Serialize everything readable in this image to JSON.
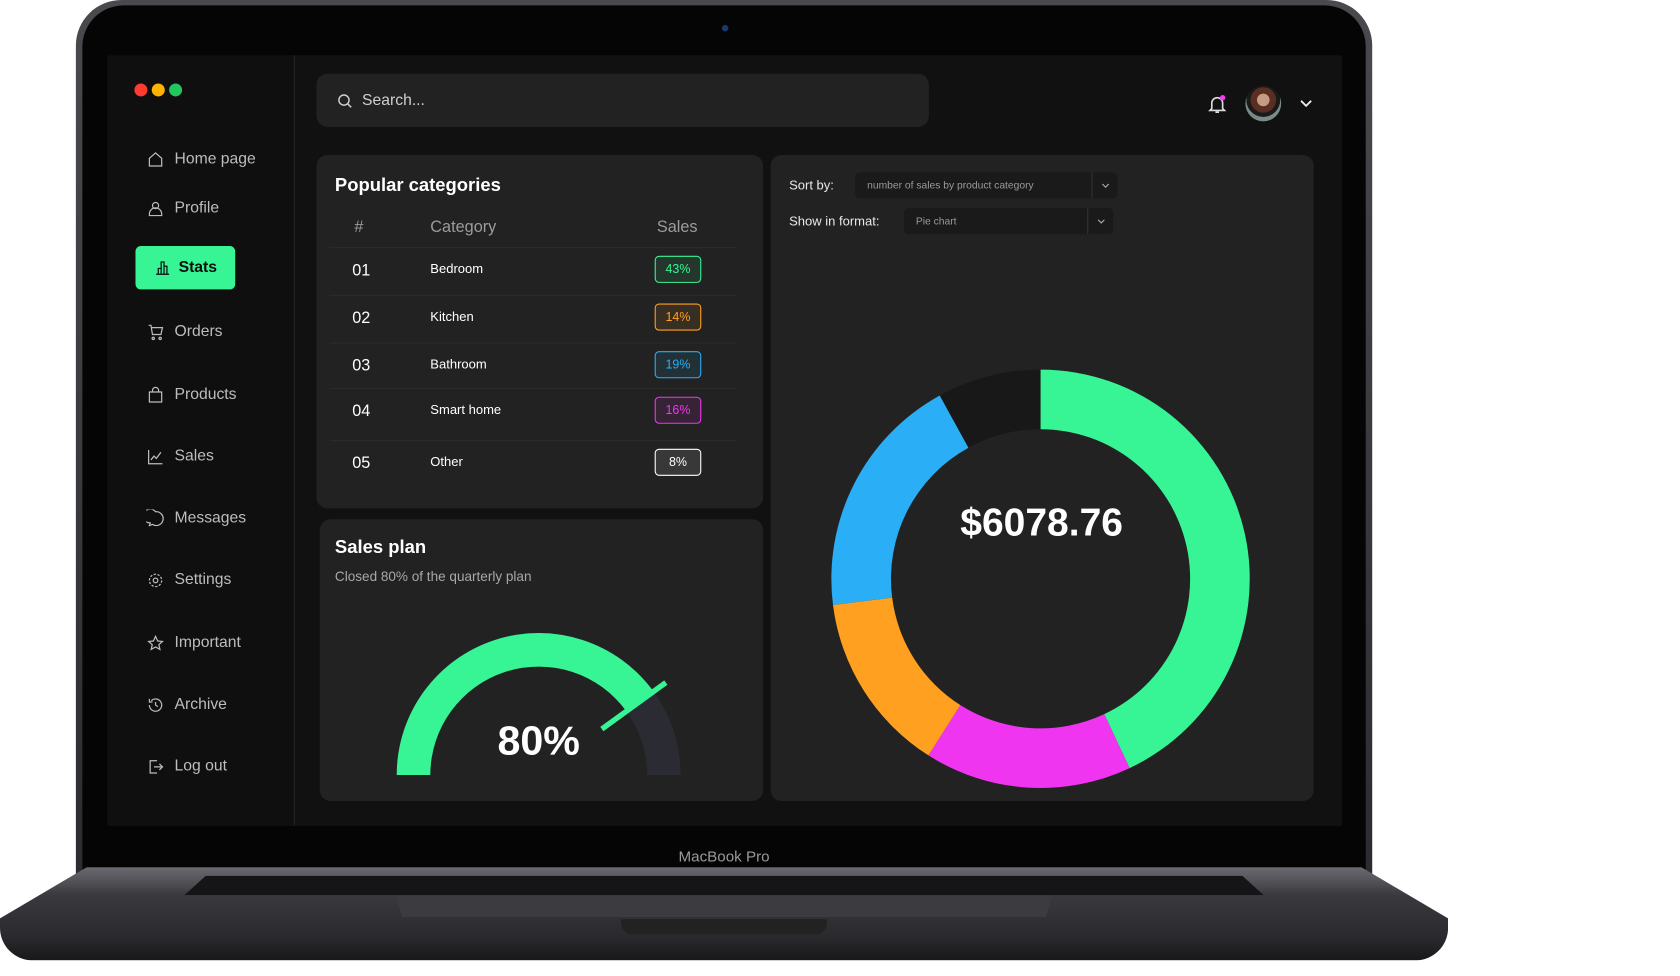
{
  "window_controls": {
    "colors": [
      "#ff3b30",
      "#ffb300",
      "#22c55e"
    ]
  },
  "device_label": "MacBook Pro",
  "sidebar": {
    "items": [
      {
        "label": "Home page",
        "icon": "home-icon"
      },
      {
        "label": "Profile",
        "icon": "user-icon"
      },
      {
        "label": "Stats",
        "icon": "bar-chart-icon",
        "active": true
      },
      {
        "label": "Orders",
        "icon": "cart-icon"
      },
      {
        "label": "Products",
        "icon": "bag-icon"
      },
      {
        "label": "Sales",
        "icon": "line-chart-icon"
      },
      {
        "label": "Messages",
        "icon": "message-icon"
      },
      {
        "label": "Settings",
        "icon": "gear-icon"
      },
      {
        "label": "Important",
        "icon": "star-icon"
      },
      {
        "label": "Archive",
        "icon": "history-icon"
      },
      {
        "label": "Log out",
        "icon": "logout-icon"
      }
    ],
    "accent": "#37f595"
  },
  "header": {
    "search_placeholder": "Search...",
    "notification_dot_color": "#f03df0"
  },
  "popular": {
    "title": "Popular categories",
    "columns": [
      "#",
      "Category",
      "Sales"
    ],
    "rows": [
      {
        "num": "01",
        "category": "Bedroom",
        "sales": "43%",
        "color": "#37f595"
      },
      {
        "num": "02",
        "category": "Kitchen",
        "sales": "14%",
        "color": "#ffa020"
      },
      {
        "num": "03",
        "category": "Bathroom",
        "sales": "19%",
        "color": "#2aaef5"
      },
      {
        "num": "04",
        "category": "Smart home",
        "sales": "16%",
        "color": "#f035f0"
      },
      {
        "num": "05",
        "category": "Other",
        "sales": "8%",
        "color": "#ffffff"
      }
    ]
  },
  "sales_plan": {
    "title": "Sales plan",
    "subtitle": "Closed 80% of the quarterly plan",
    "value_label": "80%",
    "progress": 0.8,
    "fill_color": "#37f595",
    "track_color": "#2b2b33"
  },
  "chart_panel": {
    "sort_label": "Sort by:",
    "sort_value": "number of sales by product category",
    "format_label": "Show in format:",
    "format_value": "Pie chart",
    "center_label": "$6078.76"
  },
  "chart_data": {
    "type": "pie",
    "donut": true,
    "categories": [
      "Bedroom",
      "Smart home",
      "Kitchen",
      "Bathroom",
      "Other"
    ],
    "values": [
      43,
      16,
      14,
      19,
      8
    ],
    "colors": [
      "#37f595",
      "#f035f0",
      "#ffa020",
      "#2aaef5",
      "#181818"
    ],
    "center_text": "$6078.76"
  }
}
